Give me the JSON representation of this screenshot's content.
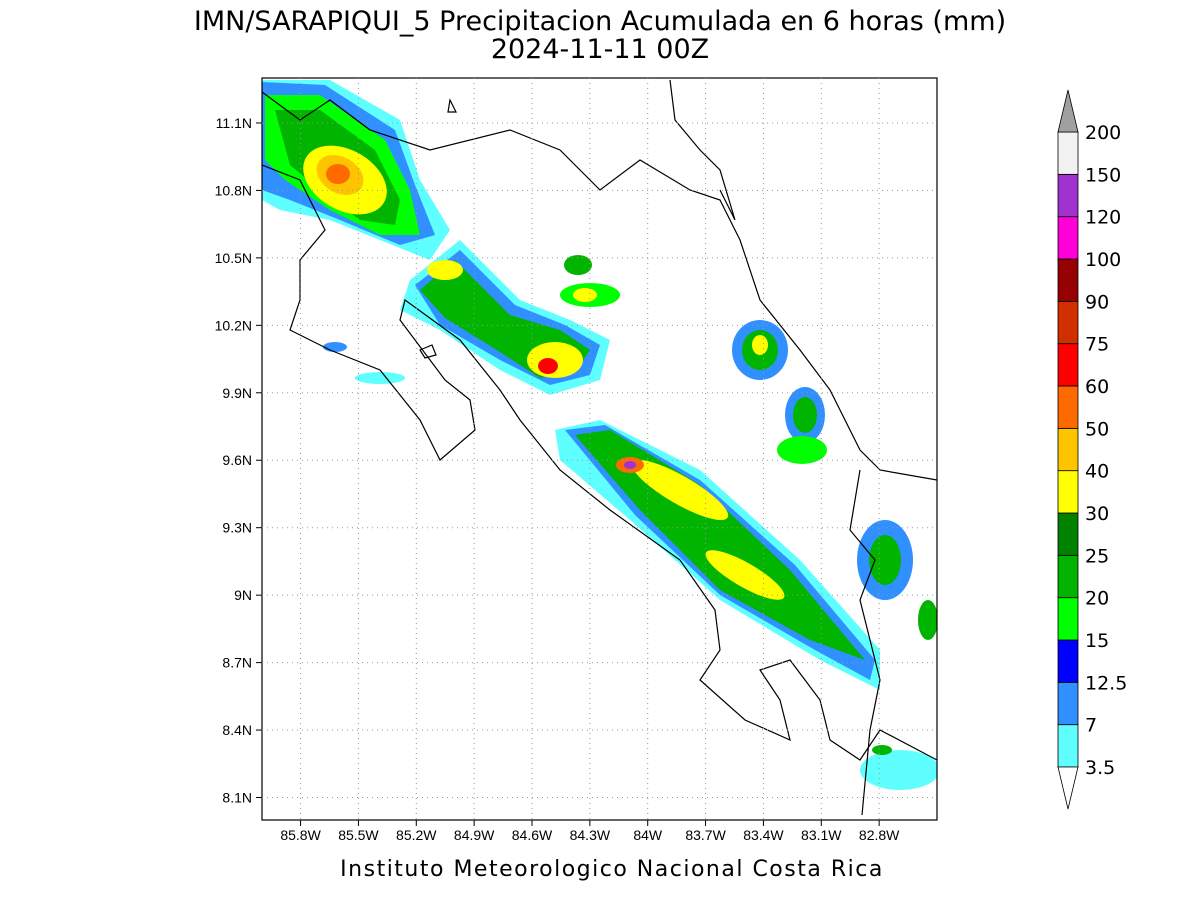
{
  "map": {
    "title": "IMN/SARAPIQUI_5 Precipitacion Acumulada en 6 horas (mm)",
    "subtitle": "2024-11-11 00Z",
    "footer": "Instituto Meteorologico Nacional Costa Rica",
    "lon_range": [
      -86.0,
      -82.5
    ],
    "lat_range": [
      8.0,
      11.3
    ],
    "lon_ticks": [
      {
        "value": -85.8,
        "label": "85.8W"
      },
      {
        "value": -85.5,
        "label": "85.5W"
      },
      {
        "value": -85.2,
        "label": "85.2W"
      },
      {
        "value": -84.9,
        "label": "84.9W"
      },
      {
        "value": -84.6,
        "label": "84.6W"
      },
      {
        "value": -84.3,
        "label": "84.3W"
      },
      {
        "value": -84.0,
        "label": "84W"
      },
      {
        "value": -83.7,
        "label": "83.7W"
      },
      {
        "value": -83.4,
        "label": "83.4W"
      },
      {
        "value": -83.1,
        "label": "83.1W"
      },
      {
        "value": -82.8,
        "label": "82.8W"
      }
    ],
    "lat_ticks": [
      {
        "value": 8.1,
        "label": "8.1N"
      },
      {
        "value": 8.4,
        "label": "8.4N"
      },
      {
        "value": 8.7,
        "label": "8.7N"
      },
      {
        "value": 9.0,
        "label": "9N"
      },
      {
        "value": 9.3,
        "label": "9.3N"
      },
      {
        "value": 9.6,
        "label": "9.6N"
      },
      {
        "value": 9.9,
        "label": "9.9N"
      },
      {
        "value": 10.2,
        "label": "10.2N"
      },
      {
        "value": 10.5,
        "label": "10.5N"
      },
      {
        "value": 10.8,
        "label": "10.8N"
      },
      {
        "value": 11.1,
        "label": "11.1N"
      }
    ],
    "grid": true,
    "colorbar": {
      "levels": [
        3.5,
        7,
        12.5,
        15,
        20,
        25,
        30,
        40,
        50,
        60,
        75,
        90,
        100,
        120,
        150,
        200
      ],
      "colors": [
        "#60ffff",
        "#3090ff",
        "#0000ff",
        "#00ff00",
        "#00b400",
        "#008200",
        "#ffff00",
        "#ffc400",
        "#ff6a00",
        "#ff0000",
        "#d03000",
        "#960000",
        "#ff00d8",
        "#a032d0",
        "#f2f2f2"
      ],
      "under_color": "#ffffff",
      "over_color": "#a0a0a0"
    }
  }
}
